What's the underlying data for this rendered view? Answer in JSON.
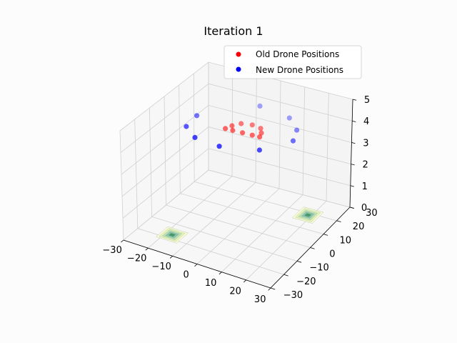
{
  "chart_data": {
    "type": "scatter",
    "projection": "3d",
    "title": "Iteration 1",
    "xlabel": "",
    "ylabel": "",
    "zlabel": "",
    "xlim": [
      -30,
      30
    ],
    "ylim": [
      -30,
      30
    ],
    "zlim": [
      0,
      5
    ],
    "x_ticks": [
      "−30",
      "−20",
      "−10",
      "0",
      "10",
      "20",
      "30"
    ],
    "y_ticks": [
      "−30",
      "−20",
      "−10",
      "0",
      "10",
      "20",
      "30"
    ],
    "z_ticks": [
      "0",
      "1",
      "2",
      "3",
      "4",
      "5"
    ],
    "grid": true,
    "legend_position": "top-right",
    "series": [
      {
        "name": "Old Drone Positions",
        "color": "#ff0000",
        "points": [
          {
            "x": -7,
            "y": 3,
            "z": 4
          },
          {
            "x": -4,
            "y": 3,
            "z": 4
          },
          {
            "x": 0,
            "y": 3,
            "z": 4
          },
          {
            "x": 4,
            "y": 3,
            "z": 4
          },
          {
            "x": 7,
            "y": 3,
            "z": 4
          },
          {
            "x": 6,
            "y": 6,
            "z": 4
          },
          {
            "x": 4,
            "y": 9,
            "z": 4
          },
          {
            "x": 0,
            "y": 10,
            "z": 4
          },
          {
            "x": -4,
            "y": 9,
            "z": 4
          },
          {
            "x": -6,
            "y": 6,
            "z": 4
          }
        ]
      },
      {
        "name": "New Drone Positions",
        "color": "#0000ff",
        "points": [
          {
            "x": -20,
            "y": -2,
            "z": 4
          },
          {
            "x": -13,
            "y": -8,
            "z": 4
          },
          {
            "x": -2,
            "y": -10,
            "z": 4
          },
          {
            "x": 12,
            "y": -6,
            "z": 4
          },
          {
            "x": 19,
            "y": 6,
            "z": 4
          },
          {
            "x": 16,
            "y": 14,
            "z": 4
          },
          {
            "x": 9,
            "y": 21,
            "z": 4
          },
          {
            "x": -5,
            "y": 24,
            "z": 4
          },
          {
            "x": -21,
            "y": 7,
            "z": 4
          }
        ]
      }
    ],
    "surface_peaks": [
      {
        "x": -17,
        "y": -18
      },
      {
        "x": 19,
        "y": 18
      }
    ],
    "surface_color": "#2e8b57"
  }
}
